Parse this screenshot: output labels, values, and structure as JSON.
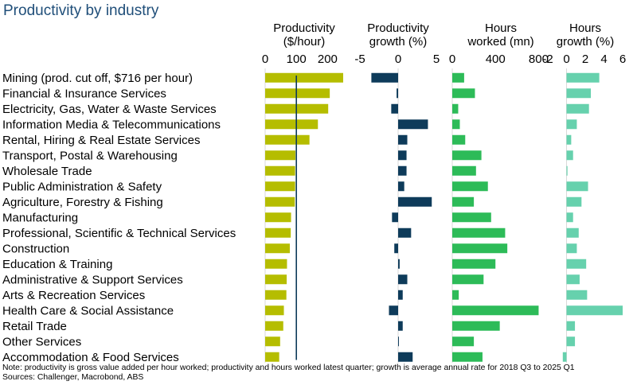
{
  "title": "Productivity by industry",
  "footnote": "Note: productivity is gross value added per hour worked; productivity and hours worked latest quarter; growth is average annual rate for 2018 Q3 to 2025 Q1",
  "sources": "Sources: Challenger, Macrobond, ABS",
  "colors": {
    "productivity": "#b5bd00",
    "productivity_growth": "#0e3b5a",
    "hours": "#2dbb58",
    "hours_growth": "#66d1ad",
    "title": "#1f4e79"
  },
  "chart_data": {
    "type": "bar",
    "orientation": "horizontal",
    "categories": [
      "Mining (prod. cut off, $716 per hour)",
      "Financial & Insurance Services",
      "Electricity, Gas, Water & Waste Services",
      "Information Media & Telecommunications",
      "Rental, Hiring & Real Estate Services",
      "Transport, Postal & Warehousing",
      "Wholesale Trade",
      "Public Administration & Safety",
      "Agriculture, Forestry & Fishing",
      "Manufacturing",
      "Professional, Scientific & Technical Services",
      "Construction",
      "Education & Training",
      "Administrative & Support Services",
      "Arts & Recreation Services",
      "Health Care & Social Assistance",
      "Retail Trade",
      "Other Services",
      "Accommodation & Food Services"
    ],
    "panels": [
      {
        "name": "Productivity ($/hour)",
        "header": [
          "Productivity",
          "($/hour)"
        ],
        "xlim": [
          0,
          250
        ],
        "ticks": [
          0,
          100,
          200
        ],
        "reference_line": 100,
        "values": [
          250,
          207,
          202,
          169,
          142,
          97,
          96,
          96,
          95,
          83,
          82,
          79,
          70,
          69,
          68,
          60,
          58,
          48,
          45
        ]
      },
      {
        "name": "Productivity growth (%)",
        "header": [
          "Productivity",
          "growth (%)"
        ],
        "xlim": [
          -5,
          5
        ],
        "ticks": [
          -5,
          0,
          5
        ],
        "values": [
          -3.5,
          -0.2,
          -0.9,
          3.9,
          1.2,
          1.1,
          1.1,
          0.8,
          4.4,
          -0.8,
          1.7,
          -0.5,
          0.2,
          1.2,
          0.6,
          -1.2,
          0.6,
          0.1,
          1.9
        ]
      },
      {
        "name": "Hours worked (mn)",
        "header": [
          "Hours",
          "worked (mn)"
        ],
        "xlim": [
          0,
          900
        ],
        "ticks": [
          0,
          400,
          800
        ],
        "values": [
          110,
          210,
          55,
          70,
          120,
          270,
          220,
          330,
          200,
          360,
          490,
          510,
          400,
          290,
          60,
          800,
          440,
          200,
          280
        ]
      },
      {
        "name": "Hours growth (%)",
        "header": [
          "Hours",
          "growth (%)"
        ],
        "xlim": [
          -2,
          6
        ],
        "ticks": [
          -2,
          0,
          2,
          4,
          6
        ],
        "values": [
          3.5,
          2.6,
          2.4,
          1.1,
          0.5,
          0.7,
          0.1,
          2.3,
          1.6,
          0.7,
          1.3,
          1.1,
          2.1,
          1.4,
          2.2,
          6.2,
          0.9,
          0.9,
          -0.4
        ]
      }
    ]
  }
}
